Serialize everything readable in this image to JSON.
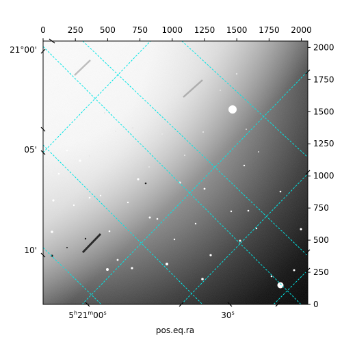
{
  "figure": {
    "xlabel": "pos.eq.ra",
    "grid_color": "#00e5e5"
  },
  "pixel_axes": {
    "top_ticks": [
      "0",
      "250",
      "500",
      "750",
      "1000",
      "1250",
      "1500",
      "1750",
      "2000"
    ],
    "right_ticks": [
      "0",
      "250",
      "500",
      "750",
      "1000",
      "1250",
      "1500",
      "1750",
      "2000"
    ]
  },
  "world_axes": {
    "ra_ticks": [
      {
        "h": "5",
        "hsup": "h",
        "m": "21",
        "msup": "m",
        "s": "00",
        "ssup": "s"
      },
      {
        "s": "30",
        "ssup": "s"
      }
    ],
    "dec_ticks": [
      "21°00'",
      "05'",
      "10'"
    ]
  }
}
